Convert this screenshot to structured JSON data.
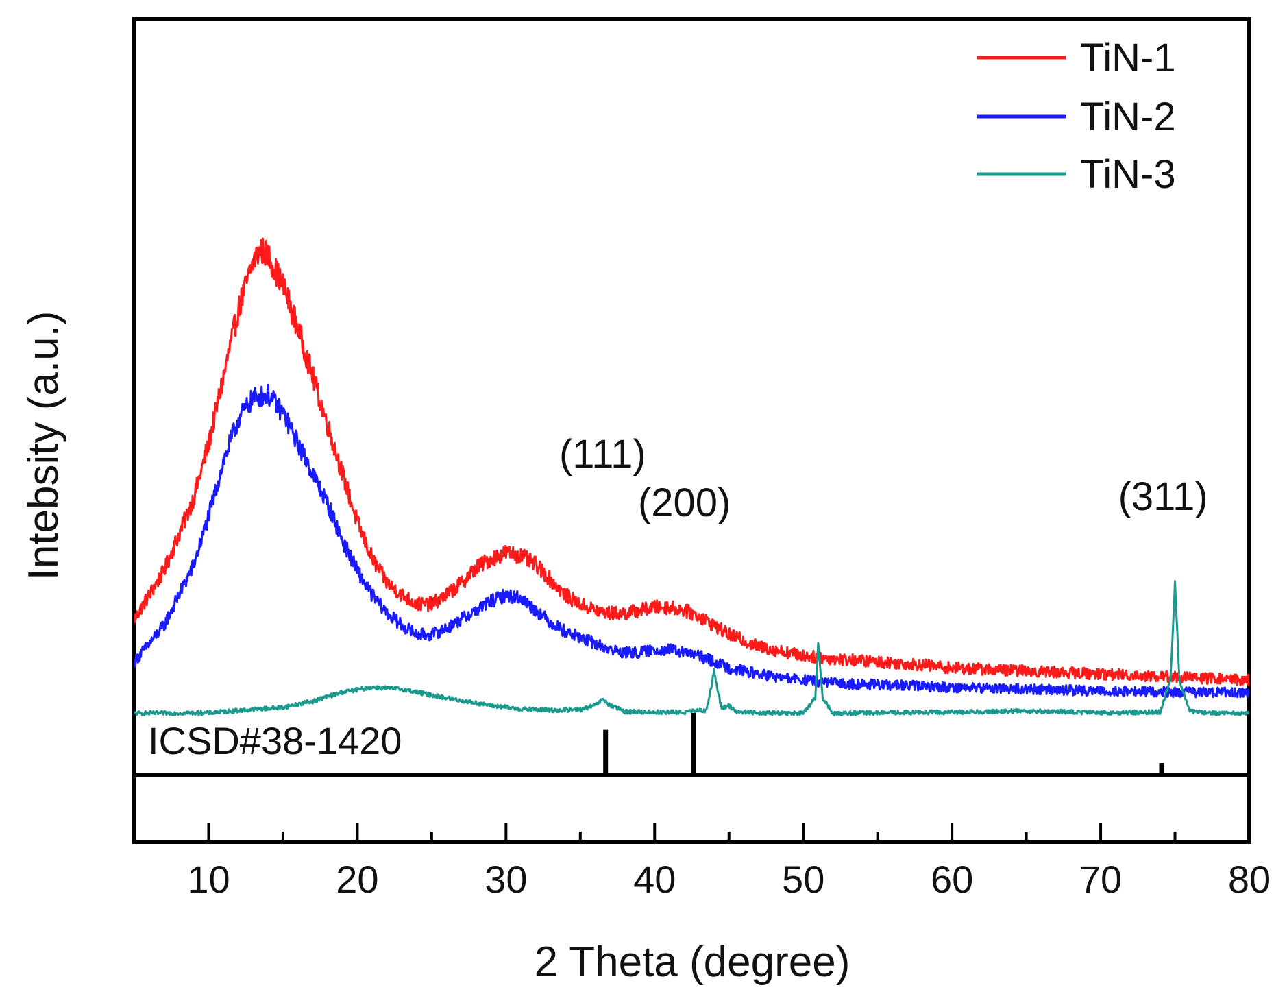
{
  "chart_data": {
    "type": "line",
    "title": "",
    "xlabel": "2 Theta (degree)",
    "ylabel": "Intebsity (a.u.)",
    "xlim": [
      5,
      80
    ],
    "ylim": [
      0,
      100
    ],
    "x_ticks": [
      10,
      20,
      30,
      40,
      50,
      60,
      70,
      80
    ],
    "x_tick_labels": [
      "10",
      "20",
      "30",
      "40",
      "50",
      "60",
      "70",
      "80"
    ],
    "x_minor_ticks": [
      15,
      25,
      35,
      45,
      55,
      65,
      75
    ],
    "legend_position": "top-right",
    "series": [
      {
        "name": "TiN-1",
        "color": "#ff1a1a",
        "x": [
          5,
          7,
          9,
          10,
          11,
          12,
          13,
          13.5,
          14,
          15,
          16,
          17,
          18,
          19,
          20,
          21,
          22,
          23,
          24,
          25,
          26,
          27,
          28,
          29,
          30,
          31,
          32,
          33,
          34,
          35,
          36,
          37,
          38,
          39,
          40,
          41,
          42,
          43,
          44,
          45,
          46,
          47,
          48,
          50,
          52,
          55,
          58,
          60,
          65,
          70,
          75,
          80
        ],
        "y": [
          16,
          24,
          36,
          45,
          56,
          67,
          75,
          77,
          76,
          71,
          64,
          56,
          48,
          40,
          32,
          26,
          22,
          20,
          18.5,
          18.5,
          20,
          22,
          24.5,
          26,
          27,
          26.5,
          25,
          22.5,
          20,
          18.5,
          17.5,
          17,
          17,
          17.5,
          18,
          18,
          17.5,
          16.5,
          15,
          13.5,
          12.5,
          11.5,
          11,
          10,
          9.5,
          9,
          8.5,
          8,
          7.5,
          7,
          6.5,
          6
        ]
      },
      {
        "name": "TiN-2",
        "color": "#1a1aff",
        "x": [
          5,
          7,
          9,
          10,
          11,
          12,
          13,
          14,
          15,
          16,
          17,
          18,
          19,
          20,
          21,
          22,
          23,
          24,
          25,
          26,
          27,
          28,
          29,
          30,
          31,
          32,
          33,
          34,
          35,
          36,
          37,
          38,
          39,
          40,
          41,
          42,
          43,
          44,
          45,
          46,
          47,
          48,
          50,
          52,
          55,
          58,
          60,
          65,
          70,
          75,
          80
        ],
        "y": [
          9,
          15,
          25,
          33,
          42,
          49,
          52.5,
          53,
          50,
          45,
          40,
          35,
          29,
          24,
          20,
          17,
          15,
          13.5,
          13.5,
          14.5,
          16,
          17.5,
          19,
          20,
          19.5,
          17.5,
          15.5,
          14,
          13,
          12,
          11,
          10.5,
          10.5,
          11,
          11,
          10.5,
          10,
          9,
          8,
          7.5,
          7,
          6.5,
          6,
          5.5,
          5.2,
          5,
          4.8,
          4.5,
          4.2,
          4,
          4
        ]
      },
      {
        "name": "TiN-3",
        "color": "#1a9a8f",
        "x": [
          5,
          10,
          15,
          17,
          19,
          21,
          23,
          25,
          27,
          29,
          31,
          33,
          35,
          36,
          36.5,
          37,
          38,
          40,
          42,
          43.5,
          44,
          44.5,
          45,
          45.5,
          47,
          50,
          50.8,
          51,
          51.3,
          52,
          55,
          60,
          65,
          70,
          74,
          74.7,
          75,
          75.3,
          76,
          78,
          80
        ],
        "y": [
          0.5,
          0.6,
          1.5,
          2.5,
          4,
          4.8,
          4.5,
          3.5,
          2.6,
          1.8,
          1.2,
          1.0,
          1.1,
          1.8,
          2.8,
          1.8,
          0.8,
          0.7,
          0.7,
          1.0,
          7.5,
          1.2,
          1.8,
          0.8,
          0.6,
          0.5,
          3,
          12,
          3,
          0.5,
          0.6,
          0.7,
          0.9,
          0.6,
          0.7,
          6,
          22,
          6,
          0.8,
          0.5,
          0.5
        ]
      }
    ],
    "reference": {
      "label": "ICSD#38-1420",
      "color": "#000000",
      "positions": [
        36.7,
        42.6,
        74.1
      ],
      "intensities": [
        72,
        100,
        17
      ]
    },
    "annotations": [
      {
        "text": "(111)",
        "x": 36.5,
        "y": 41
      },
      {
        "text": "(200)",
        "x": 42.0,
        "y": 33
      },
      {
        "text": "(311)",
        "x": 74.2,
        "y": 34
      }
    ]
  }
}
